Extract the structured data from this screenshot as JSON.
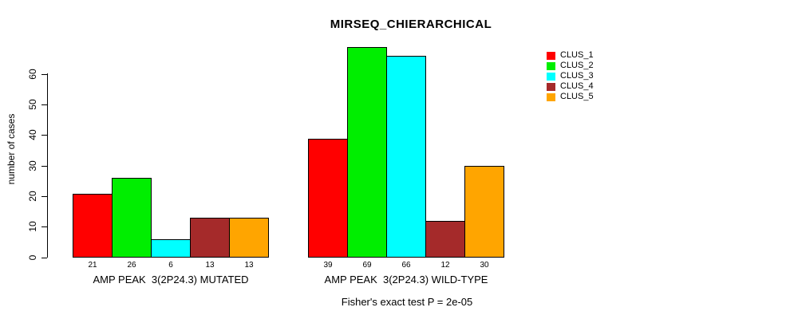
{
  "chart_data": {
    "type": "bar",
    "title": "MIRSEQ_CHIERARCHICAL",
    "ylabel": "number of cases",
    "xlabel": "",
    "ylim": [
      0,
      72
    ],
    "yticks": [
      0,
      10,
      20,
      30,
      40,
      50,
      60
    ],
    "grid": false,
    "legend_position": "top-right",
    "categories": [
      "AMP PEAK  3(2P24.3) MUTATED",
      "AMP PEAK  3(2P24.3) WILD-TYPE"
    ],
    "series": [
      {
        "name": "CLUS_1",
        "color": "#FF0000",
        "values": [
          21,
          39
        ]
      },
      {
        "name": "CLUS_2",
        "color": "#00EE00",
        "values": [
          26,
          69
        ]
      },
      {
        "name": "CLUS_3",
        "color": "#00FFFF",
        "values": [
          6,
          66
        ]
      },
      {
        "name": "CLUS_4",
        "color": "#A52A2A",
        "values": [
          13,
          12
        ]
      },
      {
        "name": "CLUS_5",
        "color": "#FFA500",
        "values": [
          13,
          30
        ]
      }
    ],
    "bar_value_labels": {
      "group1": [
        21,
        26,
        6,
        13,
        13
      ],
      "group2": [
        39,
        69,
        66,
        12,
        30
      ]
    },
    "annotation": "Fisher's exact test P = 2e-05"
  },
  "colors": {
    "axis": "#000000",
    "text": "#000000",
    "background": "#FFFFFF"
  }
}
